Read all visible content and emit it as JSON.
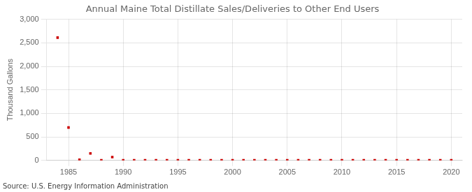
{
  "chart_data": {
    "type": "scatter",
    "title": "Annual Maine Total Distillate Sales/Deliveries to Other End Users",
    "ylabel": "Thousand Gallons",
    "annotation": "Source: U.S. Energy Information Administration",
    "x": [
      1984,
      1985,
      1986,
      1987,
      1988,
      1989,
      1990,
      1991,
      1992,
      1993,
      1994,
      1995,
      1996,
      1997,
      1998,
      1999,
      2000,
      2001,
      2002,
      2003,
      2004,
      2005,
      2006,
      2007,
      2008,
      2009,
      2010,
      2011,
      2012,
      2013,
      2014,
      2015,
      2016,
      2017,
      2018,
      2019,
      2020
    ],
    "values": [
      2610,
      700,
      15,
      150,
      5,
      70,
      5,
      5,
      5,
      5,
      5,
      5,
      5,
      5,
      5,
      5,
      5,
      5,
      5,
      5,
      5,
      5,
      5,
      5,
      5,
      5,
      5,
      5,
      5,
      5,
      5,
      5,
      5,
      5,
      5,
      5,
      5
    ],
    "color": "#cc0000",
    "marker": "square",
    "xlim": [
      1983,
      2021
    ],
    "xticks": [
      1985,
      1990,
      1995,
      2000,
      2005,
      2010,
      2015,
      2020
    ],
    "ylim": [
      0,
      3000
    ],
    "yticks": [
      0,
      500,
      {
        "value": 1000,
        "label": "1,000"
      },
      {
        "value": 1500,
        "label": "1,500"
      },
      {
        "value": 2000,
        "label": "2,000"
      },
      {
        "value": 2500,
        "label": "2,500"
      },
      {
        "value": 3000,
        "label": "3,000"
      }
    ],
    "grid": true
  }
}
